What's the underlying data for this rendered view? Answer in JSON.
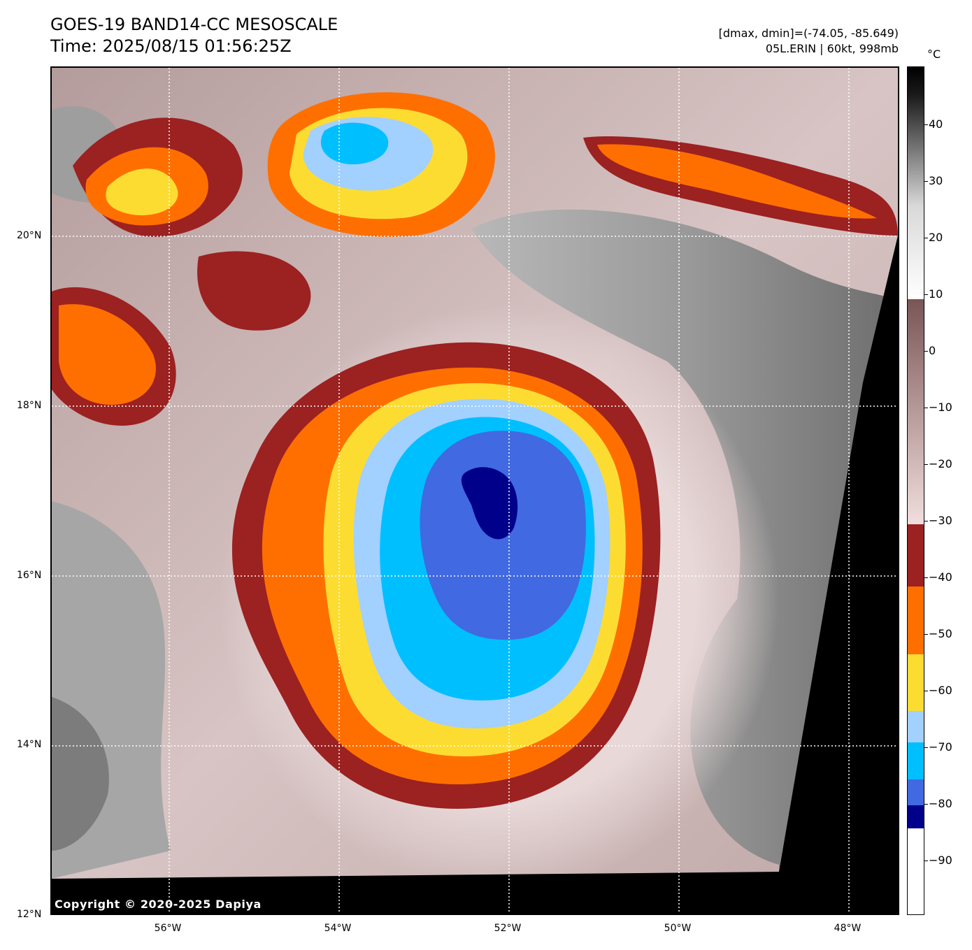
{
  "header": {
    "title_line1": "GOES-19 BAND14-CC MESOSCALE",
    "title_line2": "Time: 2025/08/15 01:56:25Z",
    "stats_line1": "[dmax, dmin]=(-74.05, -85.649)",
    "stats_line2": "05L.ERIN | 60kt, 998mb"
  },
  "map": {
    "lat_labels": [
      "20°N",
      "18°N",
      "16°N",
      "14°N",
      "12°N"
    ],
    "lon_labels": [
      "56°W",
      "54°W",
      "52°W",
      "50°W",
      "48°W"
    ],
    "lat_range": [
      12,
      22
    ],
    "lon_range": [
      -57.4,
      -47.4
    ],
    "copyright": "Copyright © 2020-2025 Dapiya",
    "storm_name": "05L.ERIN",
    "colors": {
      "no_data": "#000000",
      "cloud_warm": "#c9b1b1",
      "clear_gray": "#8c8c8c",
      "band_m40": "#9c2121",
      "band_m50": "#ff6f00",
      "band_m60": "#fddc32",
      "band_m70": "#a2d0ff",
      "band_m75": "#00bfff",
      "band_m80": "#4169e1",
      "band_m85": "#00008b"
    }
  },
  "colorbar": {
    "unit": "°C",
    "tick_labels": [
      "40",
      "30",
      "20",
      "10",
      "0",
      "−10",
      "−20",
      "−30",
      "−40",
      "−50",
      "−60",
      "−70",
      "−80",
      "−90"
    ],
    "range": [
      -100,
      50
    ]
  }
}
